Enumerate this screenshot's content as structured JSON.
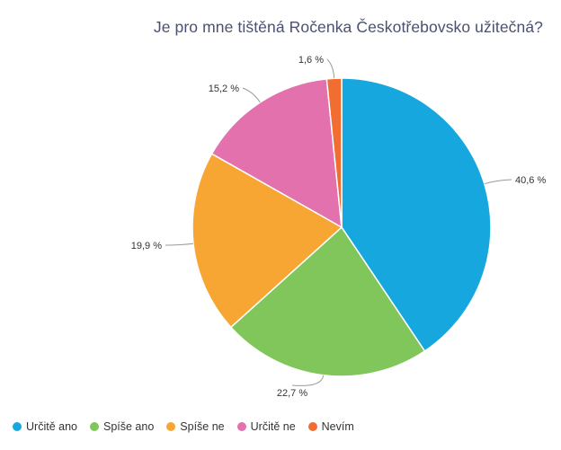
{
  "chart_data": {
    "type": "pie",
    "title": "Je pro mne tištěná Ročenka Českotřebovsko užitečná?",
    "legend_position": "bottom-left",
    "slices": [
      {
        "name": "Určitě ano",
        "value": 40.6,
        "label": "40,6 %",
        "color": "#16a7df"
      },
      {
        "name": "Spíše ano",
        "value": 22.7,
        "label": "22,7 %",
        "color": "#80c65b"
      },
      {
        "name": "Spíše ne",
        "value": 19.9,
        "label": "19,9 %",
        "color": "#f7a633"
      },
      {
        "name": "Určitě ne",
        "value": 15.2,
        "label": "15,2 %",
        "color": "#e371ad"
      },
      {
        "name": "Nevím",
        "value": 1.6,
        "label": "1,6 %",
        "color": "#f26d32"
      }
    ]
  }
}
